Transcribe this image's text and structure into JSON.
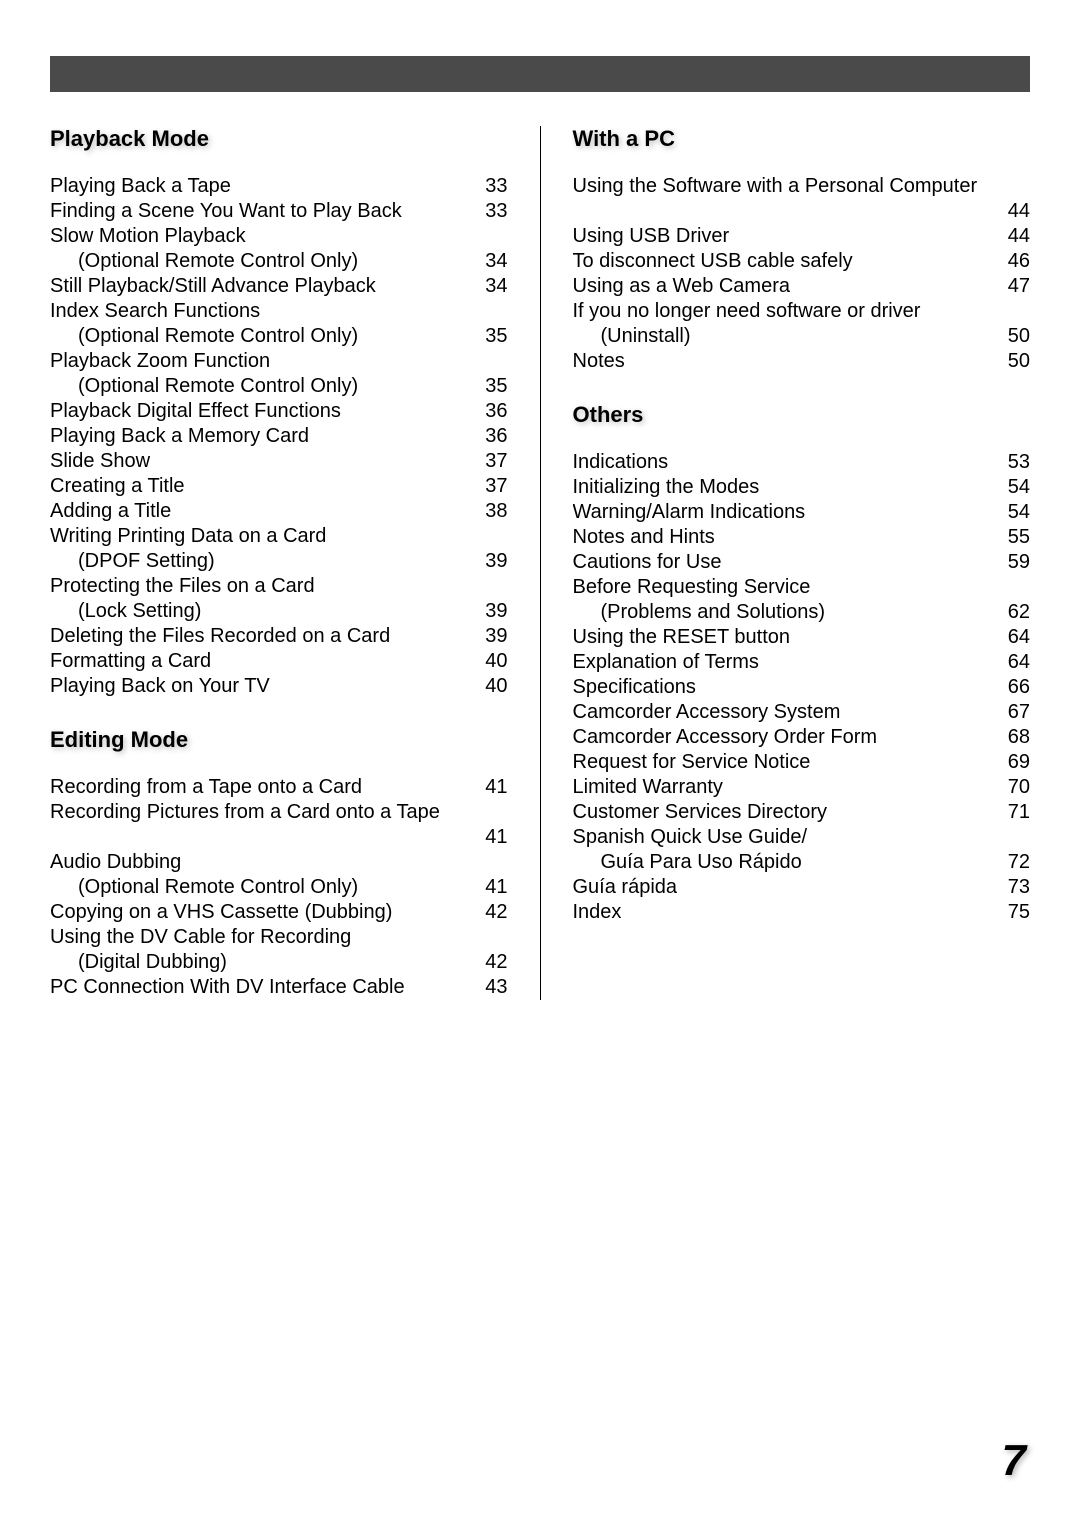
{
  "pageNumber": "7",
  "columns": {
    "left": [
      {
        "heading": "Playback Mode",
        "items": [
          {
            "label": "Playing Back a Tape",
            "page": "33",
            "indent": false,
            "leader": true
          },
          {
            "label": "Finding a Scene You Want to Play Back",
            "page": "33",
            "indent": false,
            "leader": true
          },
          {
            "label": "Slow Motion Playback",
            "page": "",
            "indent": false,
            "leader": false
          },
          {
            "label": "(Optional Remote Control Only)",
            "page": "34",
            "indent": true,
            "leader": true
          },
          {
            "label": "Still Playback/Still Advance Playback",
            "page": "34",
            "indent": false,
            "leader": true
          },
          {
            "label": "Index Search Functions",
            "page": "",
            "indent": false,
            "leader": false
          },
          {
            "label": "(Optional Remote Control Only)",
            "page": "35",
            "indent": true,
            "leader": true
          },
          {
            "label": "Playback Zoom Function",
            "page": "",
            "indent": false,
            "leader": false
          },
          {
            "label": "(Optional Remote Control Only)",
            "page": "35",
            "indent": true,
            "leader": true
          },
          {
            "label": "Playback Digital Effect Functions",
            "page": "36",
            "indent": false,
            "leader": true
          },
          {
            "label": "Playing Back a Memory Card",
            "page": "36",
            "indent": false,
            "leader": true
          },
          {
            "label": "Slide Show",
            "page": "37",
            "indent": false,
            "leader": true
          },
          {
            "label": "Creating a Title",
            "page": "37",
            "indent": false,
            "leader": true
          },
          {
            "label": "Adding a Title",
            "page": "38",
            "indent": false,
            "leader": true
          },
          {
            "label": "Writing Printing Data on a Card",
            "page": "",
            "indent": false,
            "leader": false
          },
          {
            "label": "(DPOF Setting)",
            "page": "39",
            "indent": true,
            "leader": true
          },
          {
            "label": "Protecting the Files on a Card",
            "page": "",
            "indent": false,
            "leader": false
          },
          {
            "label": "(Lock Setting)",
            "page": "39",
            "indent": true,
            "leader": true
          },
          {
            "label": "Deleting the Files Recorded on a Card",
            "page": "39",
            "indent": false,
            "leader": true
          },
          {
            "label": "Formatting a Card",
            "page": "40",
            "indent": false,
            "leader": true
          },
          {
            "label": "Playing Back on Your TV",
            "page": "40",
            "indent": false,
            "leader": true
          }
        ]
      },
      {
        "heading": "Editing Mode",
        "items": [
          {
            "label": "Recording from a Tape onto a Card",
            "page": "41",
            "indent": false,
            "leader": true
          },
          {
            "label": "Recording Pictures from a Card onto a Tape",
            "page": "",
            "indent": false,
            "leader": false
          },
          {
            "label": "",
            "page": "41",
            "indent": true,
            "leader": true
          },
          {
            "label": "Audio Dubbing",
            "page": "",
            "indent": false,
            "leader": false
          },
          {
            "label": "(Optional Remote Control Only)",
            "page": "41",
            "indent": true,
            "leader": true
          },
          {
            "label": "Copying on a VHS Cassette (Dubbing)",
            "page": "42",
            "indent": false,
            "leader": true
          },
          {
            "label": "Using the DV Cable for Recording",
            "page": "",
            "indent": false,
            "leader": false
          },
          {
            "label": "(Digital Dubbing)",
            "page": "42",
            "indent": true,
            "leader": true
          },
          {
            "label": "PC Connection With DV Interface Cable",
            "page": "43",
            "indent": false,
            "leader": true
          }
        ]
      }
    ],
    "right": [
      {
        "heading": "With a PC",
        "items": [
          {
            "label": "Using the Software with a Personal Computer",
            "page": "",
            "indent": false,
            "leader": false
          },
          {
            "label": "",
            "page": "44",
            "indent": true,
            "leader": true
          },
          {
            "label": "Using USB Driver",
            "page": "44",
            "indent": false,
            "leader": true
          },
          {
            "label": "To disconnect USB cable safely",
            "page": "46",
            "indent": false,
            "leader": true
          },
          {
            "label": "Using as a Web Camera",
            "page": "47",
            "indent": false,
            "leader": true
          },
          {
            "label": "If you no longer need software or driver",
            "page": "",
            "indent": false,
            "leader": false
          },
          {
            "label": "(Uninstall)",
            "page": "50",
            "indent": true,
            "leader": true
          },
          {
            "label": "Notes",
            "page": "50",
            "indent": false,
            "leader": true
          }
        ]
      },
      {
        "heading": "Others",
        "items": [
          {
            "label": "Indications",
            "page": "53",
            "indent": false,
            "leader": true
          },
          {
            "label": "Initializing the Modes",
            "page": "54",
            "indent": false,
            "leader": true
          },
          {
            "label": "Warning/Alarm Indications",
            "page": "54",
            "indent": false,
            "leader": true
          },
          {
            "label": "Notes and Hints",
            "page": "55",
            "indent": false,
            "leader": true
          },
          {
            "label": "Cautions for Use",
            "page": "59",
            "indent": false,
            "leader": true
          },
          {
            "label": "Before Requesting Service",
            "page": "",
            "indent": false,
            "leader": false
          },
          {
            "label": "(Problems and Solutions)",
            "page": "62",
            "indent": true,
            "leader": true
          },
          {
            "label": "Using the RESET button",
            "page": "64",
            "indent": false,
            "leader": true
          },
          {
            "label": "Explanation of Terms",
            "page": "64",
            "indent": false,
            "leader": true
          },
          {
            "label": "Specifications",
            "page": "66",
            "indent": false,
            "leader": true
          },
          {
            "label": "Camcorder Accessory System",
            "page": "67",
            "indent": false,
            "leader": true
          },
          {
            "label": "Camcorder Accessory Order Form",
            "page": "68",
            "indent": false,
            "leader": true
          },
          {
            "label": "Request for Service Notice",
            "page": "69",
            "indent": false,
            "leader": true
          },
          {
            "label": "Limited Warranty",
            "page": "70",
            "indent": false,
            "leader": true
          },
          {
            "label": "Customer Services Directory",
            "page": "71",
            "indent": false,
            "leader": true
          },
          {
            "label": "Spanish Quick Use Guide/",
            "page": "",
            "indent": false,
            "leader": false
          },
          {
            "label": "Guía Para Uso Rápido",
            "page": "72",
            "indent": true,
            "leader": true
          },
          {
            "label": "Guía rápida",
            "page": "73",
            "indent": false,
            "leader": true
          },
          {
            "label": "Index",
            "page": "75",
            "indent": false,
            "leader": true
          }
        ]
      }
    ]
  }
}
